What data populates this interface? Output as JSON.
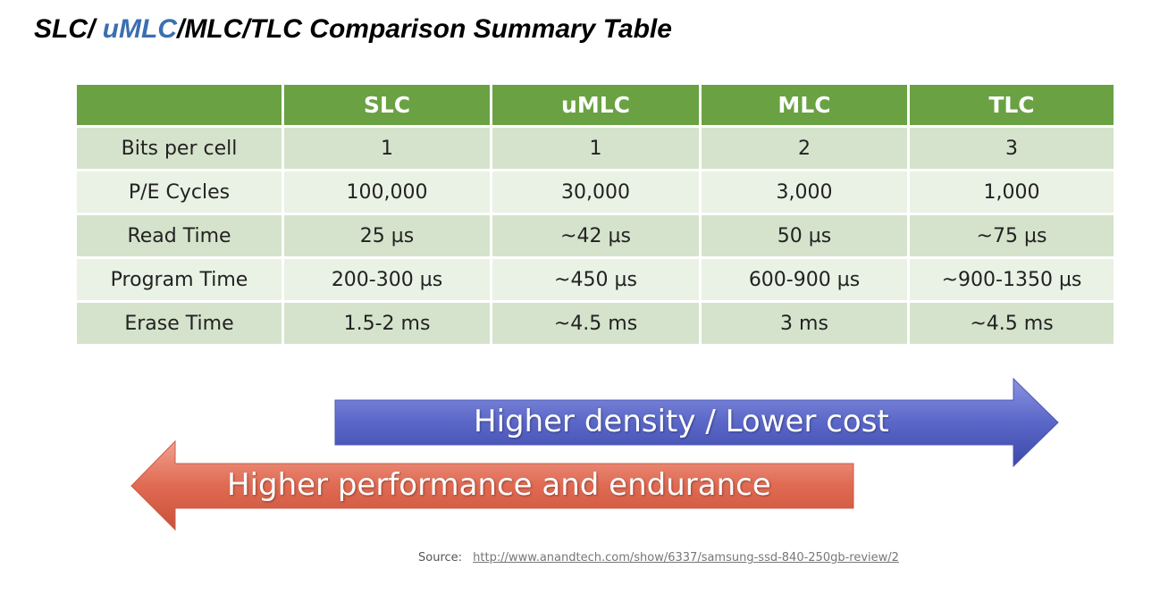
{
  "title": {
    "part1": "SLC/ ",
    "highlight": "uMLC",
    "part2": "/MLC/TLC Comparison Summary Table"
  },
  "table": {
    "headers": [
      "",
      "SLC",
      "uMLC",
      "MLC",
      "TLC"
    ],
    "rows": [
      [
        "Bits per cell",
        "1",
        "1",
        "2",
        "3"
      ],
      [
        "P/E Cycles",
        "100,000",
        "30,000",
        "3,000",
        "1,000"
      ],
      [
        "Read Time",
        "25 µs",
        "~42 µs",
        "50 µs",
        "~75 µs"
      ],
      [
        "Program Time",
        "200-300 µs",
        "~450 µs",
        "600-900 µs",
        "~900-1350 µs"
      ],
      [
        "Erase Time",
        "1.5-2 ms",
        "~4.5 ms",
        "3 ms",
        "~4.5 ms"
      ]
    ]
  },
  "arrows": {
    "right_label": "Higher density / Lower cost",
    "left_label": "Higher performance and endurance"
  },
  "source": {
    "label": "Source:",
    "link": "http://www.anandtech.com/show/6337/samsung-ssd-840-250gb-review/2"
  },
  "colors": {
    "header_green": "#6aa143",
    "row_dark": "#d5e3cc",
    "row_light": "#eaf1e5",
    "title_highlight": "#3b6fb0",
    "arrow_blue": "#5a67c8",
    "arrow_red": "#e06a52"
  }
}
